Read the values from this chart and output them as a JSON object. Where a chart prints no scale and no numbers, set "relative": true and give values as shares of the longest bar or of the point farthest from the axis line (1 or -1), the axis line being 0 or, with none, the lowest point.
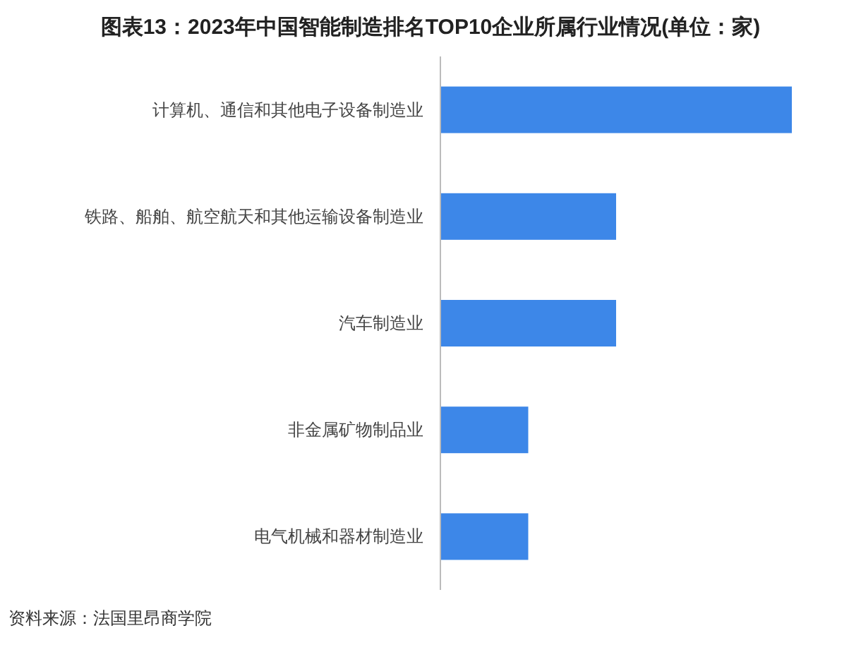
{
  "chart_data": {
    "type": "bar",
    "orientation": "horizontal",
    "relative": true,
    "title": "图表13：2023年中国智能制造排名TOP10企业所属行业情况(单位：家)",
    "categories": [
      "计算机、通信和其他电子设备制造业",
      "铁路、船舶、航空航天和其他运输设备制造业",
      "汽车制造业",
      "非金属矿物制品业",
      "电气机械和器材制造业"
    ],
    "values": [
      1,
      0.5,
      0.5,
      0.25,
      0.25
    ],
    "color": "#3d87e8",
    "annotations": [
      "资料来源：法国里昂商学院"
    ]
  }
}
